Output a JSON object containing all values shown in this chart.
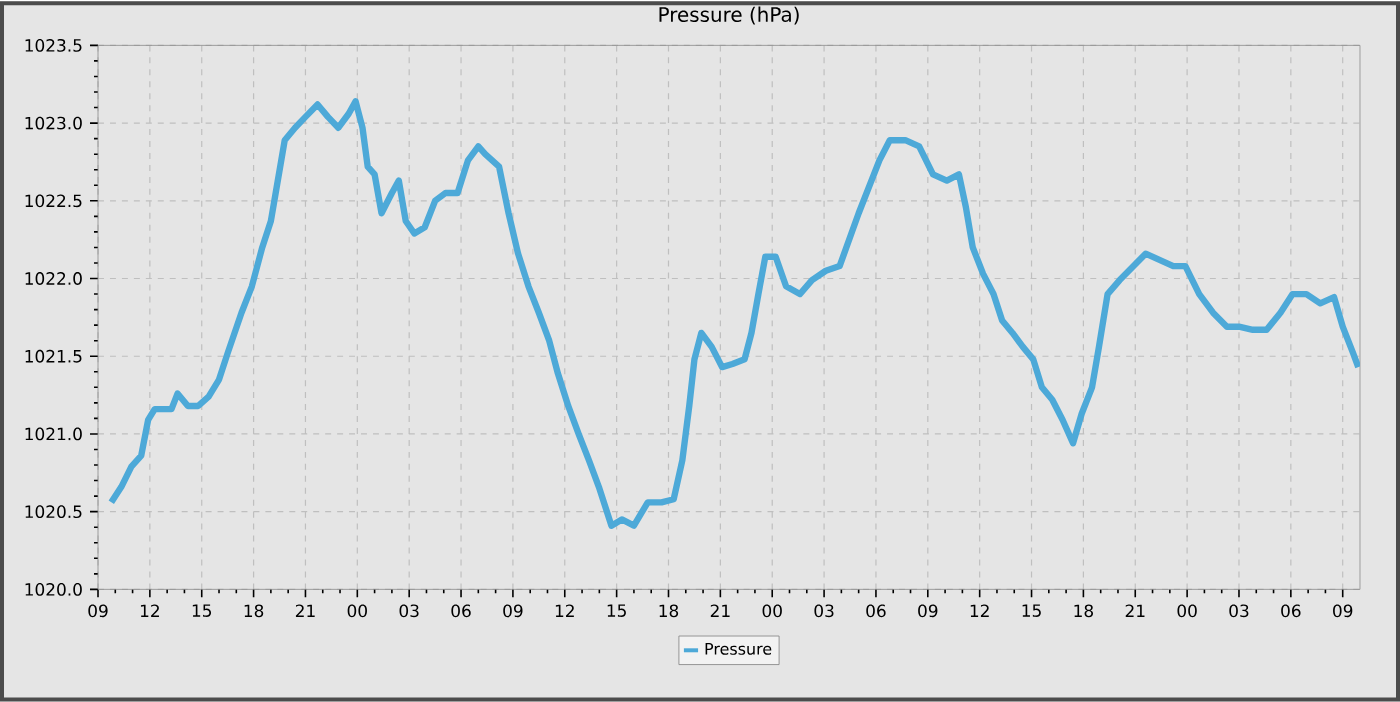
{
  "chart_data": {
    "type": "line",
    "title": "Pressure (hPa)",
    "x": [
      9.77,
      10.35,
      10.93,
      11.5,
      11.9,
      12.28,
      13.25,
      13.6,
      14.2,
      14.8,
      15.4,
      16.0,
      16.5,
      17.3,
      17.9,
      18.5,
      19.0,
      19.4,
      19.8,
      20.4,
      21.0,
      21.7,
      22.3,
      22.9,
      23.5,
      23.9,
      24.3,
      24.6,
      25.0,
      25.4,
      26.0,
      26.4,
      26.8,
      27.3,
      27.9,
      28.5,
      29.1,
      29.8,
      30.4,
      31.0,
      31.4,
      32.2,
      32.75,
      33.3,
      33.9,
      34.5,
      35.1,
      35.6,
      36.2,
      36.8,
      37.4,
      37.97,
      38.7,
      39.3,
      40.0,
      40.8,
      41.6,
      42.3,
      42.8,
      43.2,
      43.5,
      43.9,
      44.5,
      45.1,
      45.7,
      46.4,
      46.8,
      47.2,
      47.6,
      48.2,
      48.8,
      49.6,
      50.3,
      51.1,
      51.9,
      52.45,
      53.0,
      53.6,
      54.2,
      54.8,
      55.7,
      56.5,
      57.3,
      58.1,
      58.8,
      59.2,
      59.6,
      60.2,
      60.8,
      61.3,
      61.9,
      62.5,
      63.1,
      63.6,
      64.2,
      64.8,
      65.4,
      65.9,
      66.5,
      66.9,
      67.4,
      68.1,
      68.9,
      69.6,
      70.4,
      71.2,
      71.9,
      72.7,
      73.5,
      74.3,
      75.0,
      75.8,
      76.6,
      77.4,
      78.1,
      78.9,
      79.7,
      80.5,
      81.0,
      81.6,
      81.9
    ],
    "series": [
      {
        "name": "Pressure",
        "color": "#4da9d8",
        "values": [
          1020.56,
          1020.66,
          1020.79,
          1020.86,
          1021.09,
          1021.16,
          1021.16,
          1021.26,
          1021.18,
          1021.18,
          1021.24,
          1021.35,
          1021.52,
          1021.78,
          1021.95,
          1022.2,
          1022.37,
          1022.63,
          1022.89,
          1022.97,
          1023.04,
          1023.12,
          1023.04,
          1022.97,
          1023.06,
          1023.14,
          1022.97,
          1022.72,
          1022.67,
          1022.42,
          1022.55,
          1022.63,
          1022.37,
          1022.29,
          1022.33,
          1022.5,
          1022.55,
          1022.55,
          1022.76,
          1022.85,
          1022.8,
          1022.72,
          1022.42,
          1022.16,
          1021.95,
          1021.78,
          1021.6,
          1021.39,
          1021.18,
          1021.0,
          1020.83,
          1020.66,
          1020.41,
          1020.45,
          1020.41,
          1020.56,
          1020.56,
          1020.58,
          1020.83,
          1021.18,
          1021.48,
          1021.65,
          1021.56,
          1021.43,
          1021.45,
          1021.48,
          1021.65,
          1021.9,
          1022.14,
          1022.14,
          1021.95,
          1021.9,
          1021.99,
          1022.05,
          1022.08,
          1022.25,
          1022.42,
          1022.59,
          1022.76,
          1022.89,
          1022.89,
          1022.85,
          1022.67,
          1022.63,
          1022.67,
          1022.46,
          1022.2,
          1022.03,
          1021.9,
          1021.73,
          1021.65,
          1021.56,
          1021.48,
          1021.3,
          1021.22,
          1021.09,
          1020.94,
          1021.13,
          1021.3,
          1021.56,
          1021.9,
          1021.99,
          1022.08,
          1022.16,
          1022.12,
          1022.08,
          1022.08,
          1021.9,
          1021.78,
          1021.69,
          1021.69,
          1021.67,
          1021.67,
          1021.78,
          1021.9,
          1021.9,
          1021.84,
          1021.88,
          1021.69,
          1021.52,
          1021.43
        ]
      }
    ],
    "xlim": [
      9,
      82
    ],
    "xticks": [
      {
        "value": 9,
        "label": "09"
      },
      {
        "value": 12,
        "label": "12"
      },
      {
        "value": 15,
        "label": "15"
      },
      {
        "value": 18,
        "label": "18"
      },
      {
        "value": 21,
        "label": "21"
      },
      {
        "value": 24,
        "label": "00"
      },
      {
        "value": 27,
        "label": "03"
      },
      {
        "value": 30,
        "label": "06"
      },
      {
        "value": 33,
        "label": "09"
      },
      {
        "value": 36,
        "label": "12"
      },
      {
        "value": 39,
        "label": "15"
      },
      {
        "value": 42,
        "label": "18"
      },
      {
        "value": 45,
        "label": "21"
      },
      {
        "value": 48,
        "label": "00"
      },
      {
        "value": 51,
        "label": "03"
      },
      {
        "value": 54,
        "label": "06"
      },
      {
        "value": 57,
        "label": "09"
      },
      {
        "value": 60,
        "label": "12"
      },
      {
        "value": 63,
        "label": "15"
      },
      {
        "value": 66,
        "label": "18"
      },
      {
        "value": 69,
        "label": "21"
      },
      {
        "value": 72,
        "label": "00"
      },
      {
        "value": 75,
        "label": "03"
      },
      {
        "value": 78,
        "label": "06"
      },
      {
        "value": 81,
        "label": "09"
      }
    ],
    "ylim": [
      1020,
      1023.5
    ],
    "yticks": [
      {
        "value": 1020,
        "label": "1020.0"
      },
      {
        "value": 1020.5,
        "label": "1020.5"
      },
      {
        "value": 1021,
        "label": "1021.0"
      },
      {
        "value": 1021.5,
        "label": "1021.5"
      },
      {
        "value": 1022,
        "label": "1022.0"
      },
      {
        "value": 1022.5,
        "label": "1022.5"
      },
      {
        "value": 1023,
        "label": "1023.0"
      },
      {
        "value": 1023.5,
        "label": "1023.5"
      }
    ],
    "grid": true,
    "legend": "bottom"
  }
}
